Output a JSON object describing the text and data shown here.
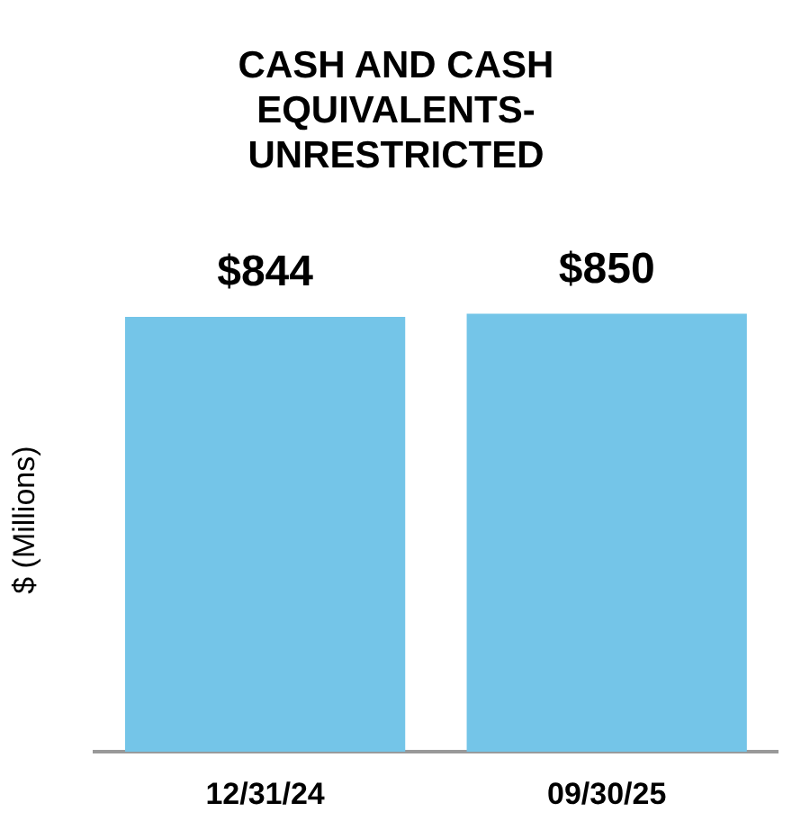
{
  "chart_data": {
    "type": "bar",
    "title": "CASH AND CASH EQUIVALENTS-UNRESTRICTED",
    "ylabel": "$ (Millions)",
    "categories": [
      "12/31/24",
      "09/30/25"
    ],
    "values": [
      844,
      850
    ],
    "value_labels": [
      "$844",
      "$850"
    ],
    "color": "#74c5e8",
    "grid": false,
    "legend": false
  }
}
